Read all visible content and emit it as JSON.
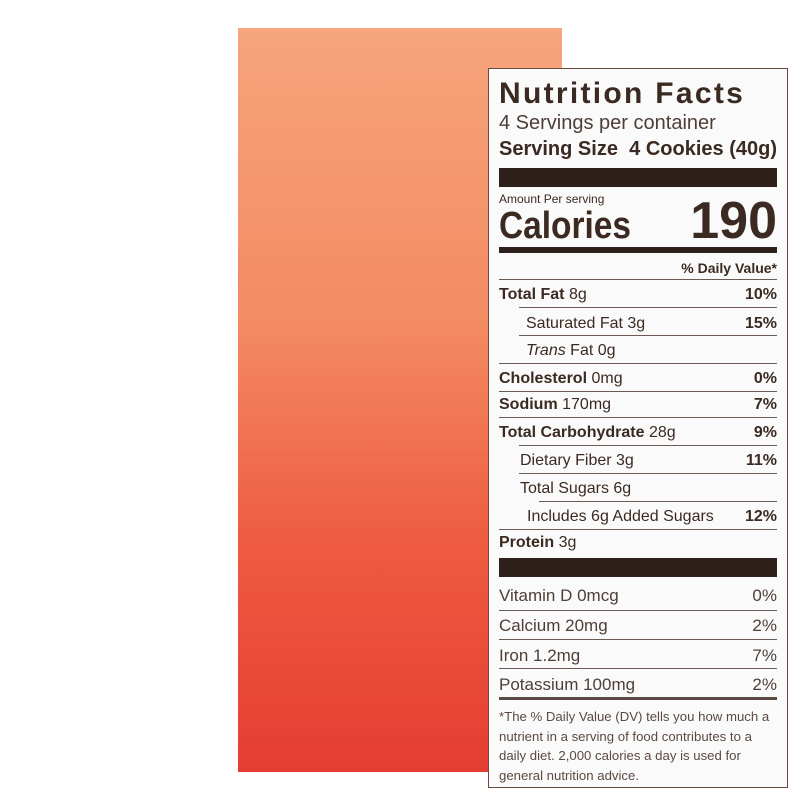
{
  "title": "Nutrition Facts",
  "servings": "4 Servings per container",
  "serving_size_label": "Serving Size",
  "serving_size_value": "4 Cookies (40g)",
  "amount_per_serving": "Amount Per serving",
  "calories_label": "Calories",
  "calories_value": "190",
  "daily_value_header": "% Daily Value*",
  "nutrients": [
    {
      "name": "Total Fat",
      "amount": "8g",
      "dv": "10%"
    },
    {
      "name": "Saturated Fat",
      "amount": "3g",
      "dv": "15%"
    },
    {
      "name_italic": "Trans",
      "name": "Fat",
      "amount": "0g",
      "dv": ""
    },
    {
      "name": "Cholesterol",
      "amount": "0mg",
      "dv": "0%"
    },
    {
      "name": "Sodium",
      "amount": "170mg",
      "dv": "7%"
    },
    {
      "name": "Total Carbohydrate",
      "amount": "28g",
      "dv": "9%"
    },
    {
      "name": "Dietary Fiber",
      "amount": "3g",
      "dv": "11%"
    },
    {
      "name": "Total Sugars",
      "amount": "6g",
      "dv": ""
    },
    {
      "name": "Includes 6g Added Sugars",
      "amount": "",
      "dv": "12%"
    },
    {
      "name": "Protein",
      "amount": "3g",
      "dv": ""
    }
  ],
  "vitamins": [
    {
      "name": "Vitamin D 0mcg",
      "dv": "0%"
    },
    {
      "name": "Calcium 20mg",
      "dv": "2%"
    },
    {
      "name": "Iron 1.2mg",
      "dv": "7%"
    },
    {
      "name": "Potassium 100mg",
      "dv": "2%"
    }
  ],
  "footnote": "*The % Daily Value (DV) tells you how much a nutrient in a serving of food contributes to a daily diet. 2,000 calories a day is used for general nutrition advice."
}
